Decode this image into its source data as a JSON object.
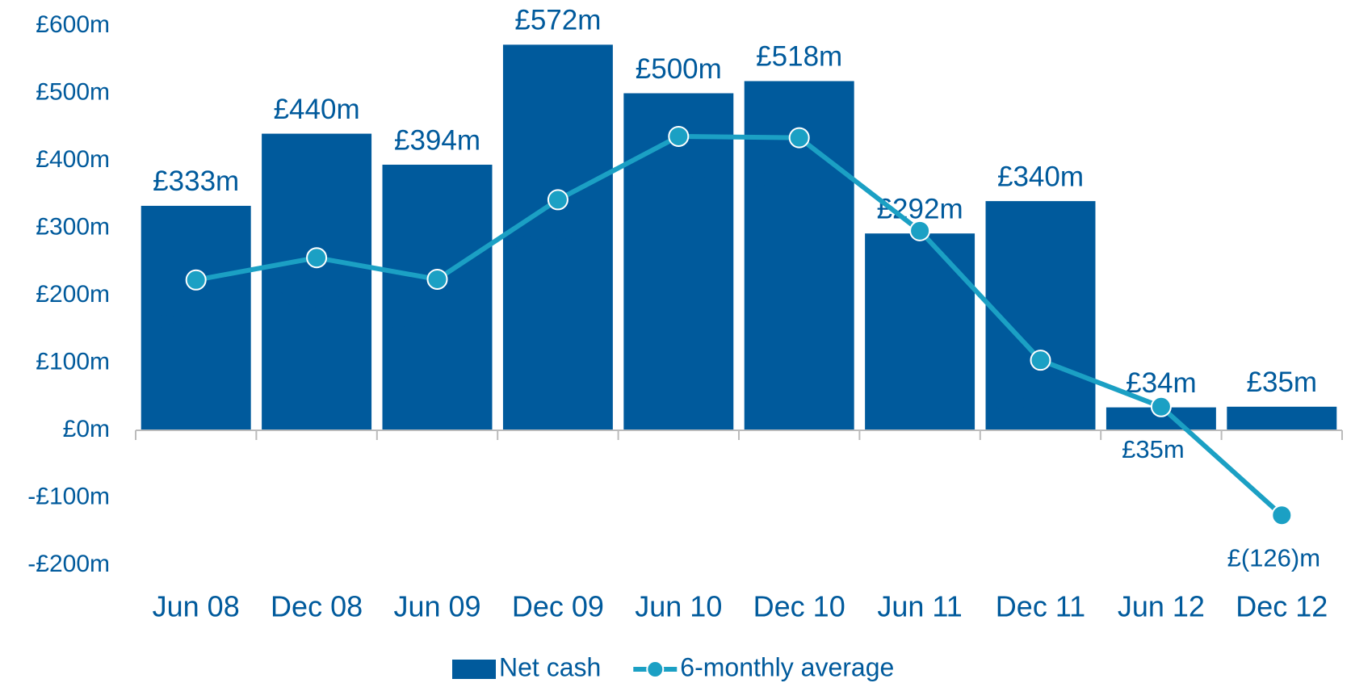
{
  "chart_data": {
    "type": "bar",
    "categories": [
      "Jun 08",
      "Dec 08",
      "Jun 09",
      "Dec 09",
      "Jun 10",
      "Dec 10",
      "Jun 11",
      "Dec 11",
      "Jun 12",
      "Dec 12"
    ],
    "series": [
      {
        "name": "Net cash",
        "type": "bar",
        "color": "#005a9c",
        "values": [
          333,
          440,
          394,
          572,
          500,
          518,
          292,
          340,
          34,
          35
        ],
        "value_labels": [
          "£333m",
          "£440m",
          "£394m",
          "£572m",
          "£500m",
          "£518m",
          "£292m",
          "£340m",
          "£34m",
          "£35m"
        ]
      },
      {
        "name": "6-monthly average",
        "type": "line",
        "color": "#1ba0c4",
        "values": [
          223,
          256,
          224,
          342,
          436,
          434,
          296,
          104,
          35,
          -126
        ],
        "value_labels": [
          "£223m",
          "£256m",
          "£224m",
          "£342m",
          "£436m",
          "£434m",
          "£296m",
          "£104m",
          "£35m",
          "£(126)m"
        ]
      }
    ],
    "ylim": [
      -200,
      600
    ],
    "yticks": [
      {
        "value": -200,
        "label": "-£200m"
      },
      {
        "value": -100,
        "label": "-£100m"
      },
      {
        "value": 0,
        "label": "£0m"
      },
      {
        "value": 100,
        "label": "£100m"
      },
      {
        "value": 200,
        "label": "£200m"
      },
      {
        "value": 300,
        "label": "£300m"
      },
      {
        "value": 400,
        "label": "£400m"
      },
      {
        "value": 500,
        "label": "£500m"
      },
      {
        "value": 600,
        "label": "£600m"
      }
    ],
    "grid": false,
    "legend": "bottom"
  }
}
